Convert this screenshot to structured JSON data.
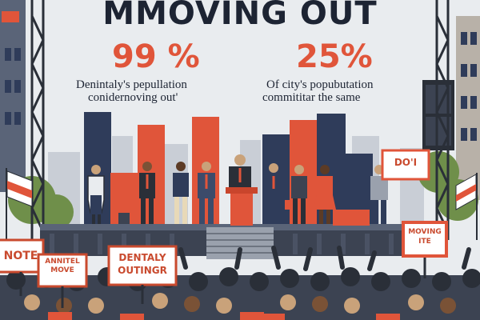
{
  "headline": "MMOVING OUT",
  "stats": [
    {
      "value": "99 %",
      "caption_lines": [
        "Denintaly's pepullation",
        "conidernoving out'"
      ]
    },
    {
      "value": "25%",
      "caption_lines": [
        "Of city's popubutation",
        "commititar the same"
      ]
    }
  ],
  "signs": [
    {
      "text": "NOTE"
    },
    {
      "text_lines": [
        "ANNITEL",
        "MOVE"
      ]
    },
    {
      "text_lines": [
        "DENTALY",
        "OUTINGR"
      ]
    },
    {
      "text_lines": [
        "MOVING",
        "ITE"
      ]
    },
    {
      "text": "DO'I"
    }
  ],
  "colors": {
    "navy": "#2f3c5a",
    "accent": "#e0553a",
    "background": "#e9ecef",
    "skyline": "#c9ced6",
    "tree": "#6f8f4a",
    "scaffold": "#2a2f38"
  },
  "icons": [
    "flag-icon",
    "lectern-icon",
    "briefcase-icon"
  ]
}
